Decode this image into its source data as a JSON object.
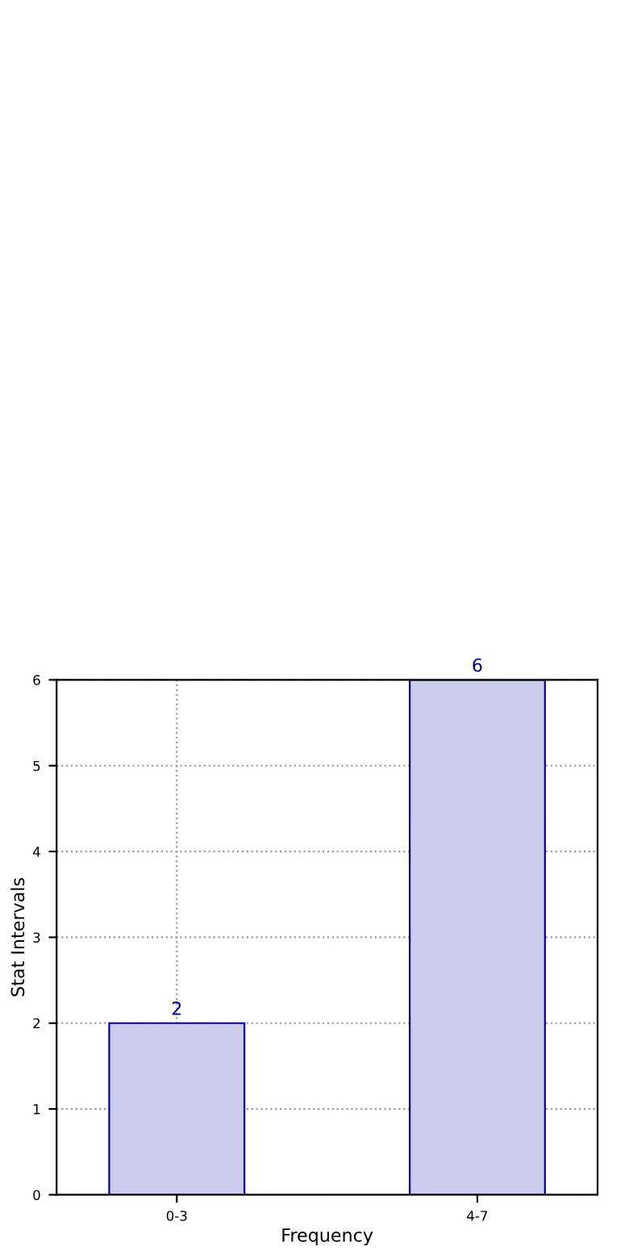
{
  "chart_data": {
    "type": "bar",
    "xlabel": "Frequency",
    "ylabel": "Stat Intervals",
    "categories": [
      "0-3",
      "4-7"
    ],
    "series": [
      {
        "color": "#ccccee",
        "values": [
          2,
          6
        ]
      }
    ],
    "ylim": [
      0,
      6
    ],
    "yticks": [
      0,
      1,
      2,
      3,
      4,
      5,
      6
    ],
    "grid": true,
    "data_labels": true,
    "line_style": "dotted"
  }
}
